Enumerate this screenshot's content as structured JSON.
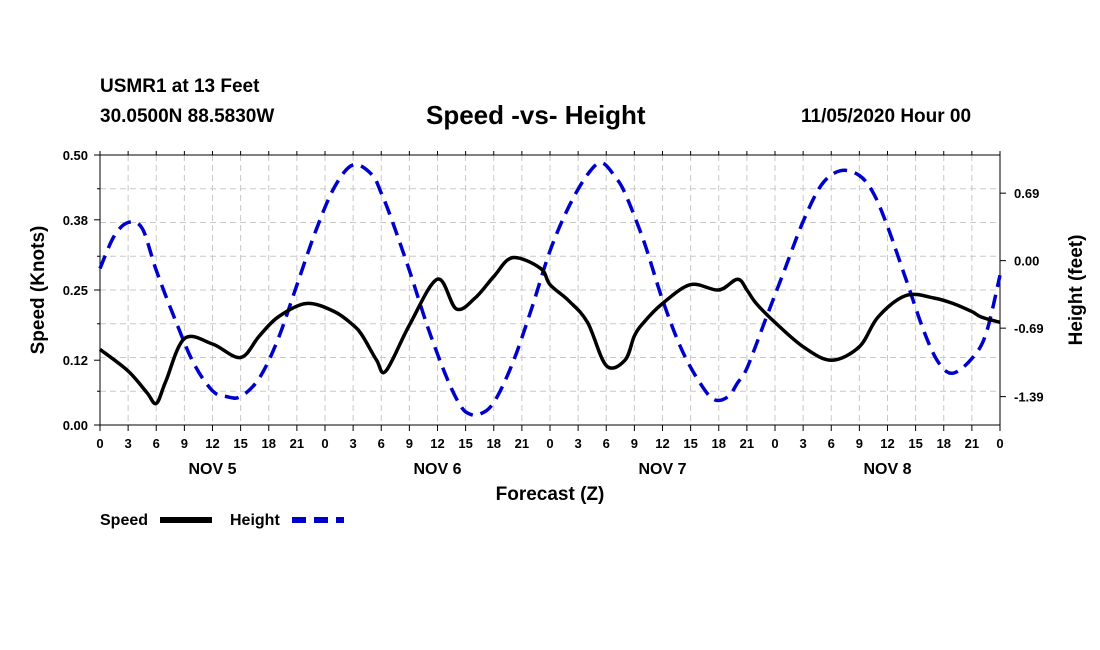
{
  "header": {
    "station": "USMR1 at 13 Feet",
    "coords": "30.0500N 88.5830W",
    "title": "Speed -vs- Height",
    "forecast_time": "11/05/2020 Hour 00"
  },
  "colors": {
    "speed": "#000000",
    "height": "#0000cc",
    "grid": "#c8c8c8"
  },
  "chart_data": {
    "type": "line",
    "title": "Speed -vs- Height",
    "xlabel": "Forecast (Z)",
    "ylabel": "Speed (Knots)",
    "y2label": "Height (feet)",
    "xlim": [
      0,
      96
    ],
    "ylim": [
      0,
      0.5
    ],
    "y2lim": [
      -1.68,
      1.08
    ],
    "grid": true,
    "x_ticks": [
      "0",
      "3",
      "6",
      "9",
      "12",
      "15",
      "18",
      "21",
      "0",
      "3",
      "6",
      "9",
      "12",
      "15",
      "18",
      "21",
      "0",
      "3",
      "6",
      "9",
      "12",
      "15",
      "18",
      "21",
      "0",
      "3",
      "6",
      "9",
      "12",
      "15",
      "18",
      "21",
      "0"
    ],
    "y_ticks": [
      "0.00",
      "0.12",
      "0.25",
      "0.38",
      "0.50"
    ],
    "y2_ticks": [
      "-1.39",
      "-0.69",
      "0.00",
      "0.69"
    ],
    "day_labels": [
      "NOV 5",
      "NOV 6",
      "NOV 7",
      "NOV 8"
    ],
    "legend_position": "bottom-left",
    "series": [
      {
        "name": "Speed",
        "axis": "left",
        "style": "solid",
        "x": [
          0,
          3,
          5,
          6,
          7,
          9,
          12,
          15,
          17,
          19,
          22,
          25,
          27,
          28,
          29.5,
          30.5,
          33,
          36,
          38,
          40,
          42,
          44,
          47,
          48,
          50,
          52,
          54,
          56,
          57,
          58,
          60,
          63,
          66,
          68,
          69,
          70,
          72,
          75,
          78,
          81,
          83,
          86,
          89,
          91,
          93,
          94,
          96
        ],
        "values": [
          0.14,
          0.1,
          0.06,
          0.04,
          0.08,
          0.16,
          0.15,
          0.125,
          0.165,
          0.2,
          0.225,
          0.21,
          0.185,
          0.165,
          0.12,
          0.1,
          0.185,
          0.27,
          0.215,
          0.235,
          0.275,
          0.31,
          0.29,
          0.26,
          0.23,
          0.19,
          0.11,
          0.12,
          0.165,
          0.19,
          0.225,
          0.26,
          0.25,
          0.27,
          0.25,
          0.225,
          0.19,
          0.145,
          0.12,
          0.145,
          0.2,
          0.24,
          0.235,
          0.225,
          0.21,
          0.2,
          0.19
        ]
      },
      {
        "name": "Height",
        "axis": "right",
        "style": "dashed",
        "x": [
          0,
          1.5,
          3,
          4.5,
          6,
          8,
          10,
          12,
          13.5,
          15,
          17,
          19,
          21,
          23,
          25,
          27,
          29,
          30,
          31,
          33,
          35,
          37,
          38.5,
          39.5,
          40.5,
          42,
          44,
          46,
          48,
          50,
          52,
          53.5,
          55,
          56,
          58,
          60,
          62,
          64,
          65.5,
          67,
          68,
          69,
          71,
          73,
          75,
          77,
          79,
          81,
          82.5,
          84,
          86,
          88,
          89.5,
          91,
          93,
          94.5,
          96
        ],
        "values": [
          -0.08,
          0.25,
          0.39,
          0.33,
          -0.1,
          -0.6,
          -1.05,
          -1.33,
          -1.39,
          -1.39,
          -1.2,
          -0.8,
          -0.25,
          0.3,
          0.75,
          0.98,
          0.88,
          0.69,
          0.45,
          -0.1,
          -0.69,
          -1.2,
          -1.49,
          -1.57,
          -1.57,
          -1.45,
          -1.05,
          -0.5,
          0.1,
          0.55,
          0.88,
          1.0,
          0.85,
          0.69,
          0.2,
          -0.4,
          -0.9,
          -1.25,
          -1.42,
          -1.39,
          -1.25,
          -1.1,
          -0.6,
          -0.1,
          0.4,
          0.78,
          0.92,
          0.87,
          0.69,
          0.35,
          -0.2,
          -0.75,
          -1.05,
          -1.15,
          -1.0,
          -0.75,
          -0.15
        ]
      }
    ]
  }
}
